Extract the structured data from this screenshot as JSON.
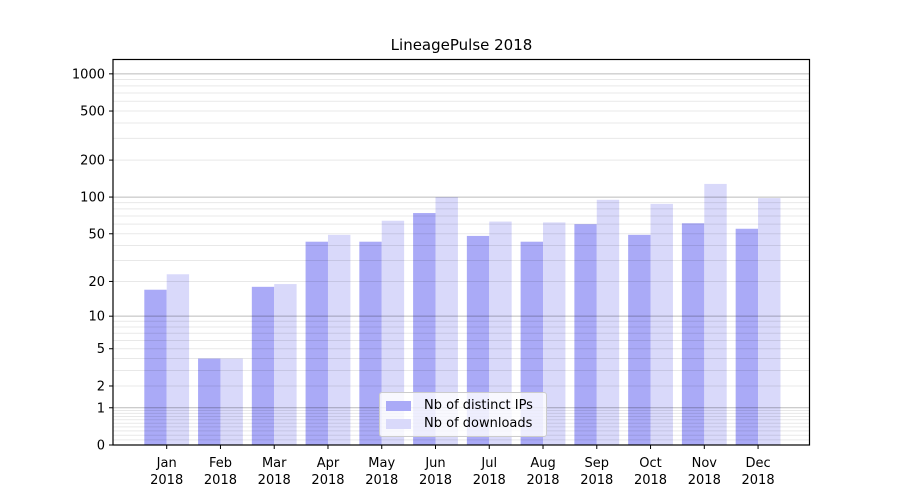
{
  "chart_data": {
    "type": "bar",
    "title": "LineagePulse 2018",
    "year_label": "2018",
    "categories": [
      "Jan",
      "Feb",
      "Mar",
      "Apr",
      "May",
      "Jun",
      "Jul",
      "Aug",
      "Sep",
      "Oct",
      "Nov",
      "Dec"
    ],
    "series": [
      {
        "name": "Nb of distinct IPs",
        "color": "#aaaaf7",
        "values": [
          17,
          4,
          18,
          43,
          43,
          74,
          48,
          43,
          60,
          49,
          61,
          55
        ]
      },
      {
        "name": "Nb of downloads",
        "color": "#d9d9fa",
        "values": [
          23,
          4,
          19,
          49,
          64,
          100,
          63,
          62,
          95,
          88,
          128,
          98
        ]
      }
    ],
    "yscale": "log(1+x)",
    "yticks": [
      0,
      1,
      2,
      5,
      10,
      20,
      50,
      100,
      200,
      500,
      1000
    ],
    "ylim": [
      0,
      1300
    ],
    "xlabel": "",
    "ylabel": "",
    "grid": true,
    "legend_position": "lower center"
  }
}
